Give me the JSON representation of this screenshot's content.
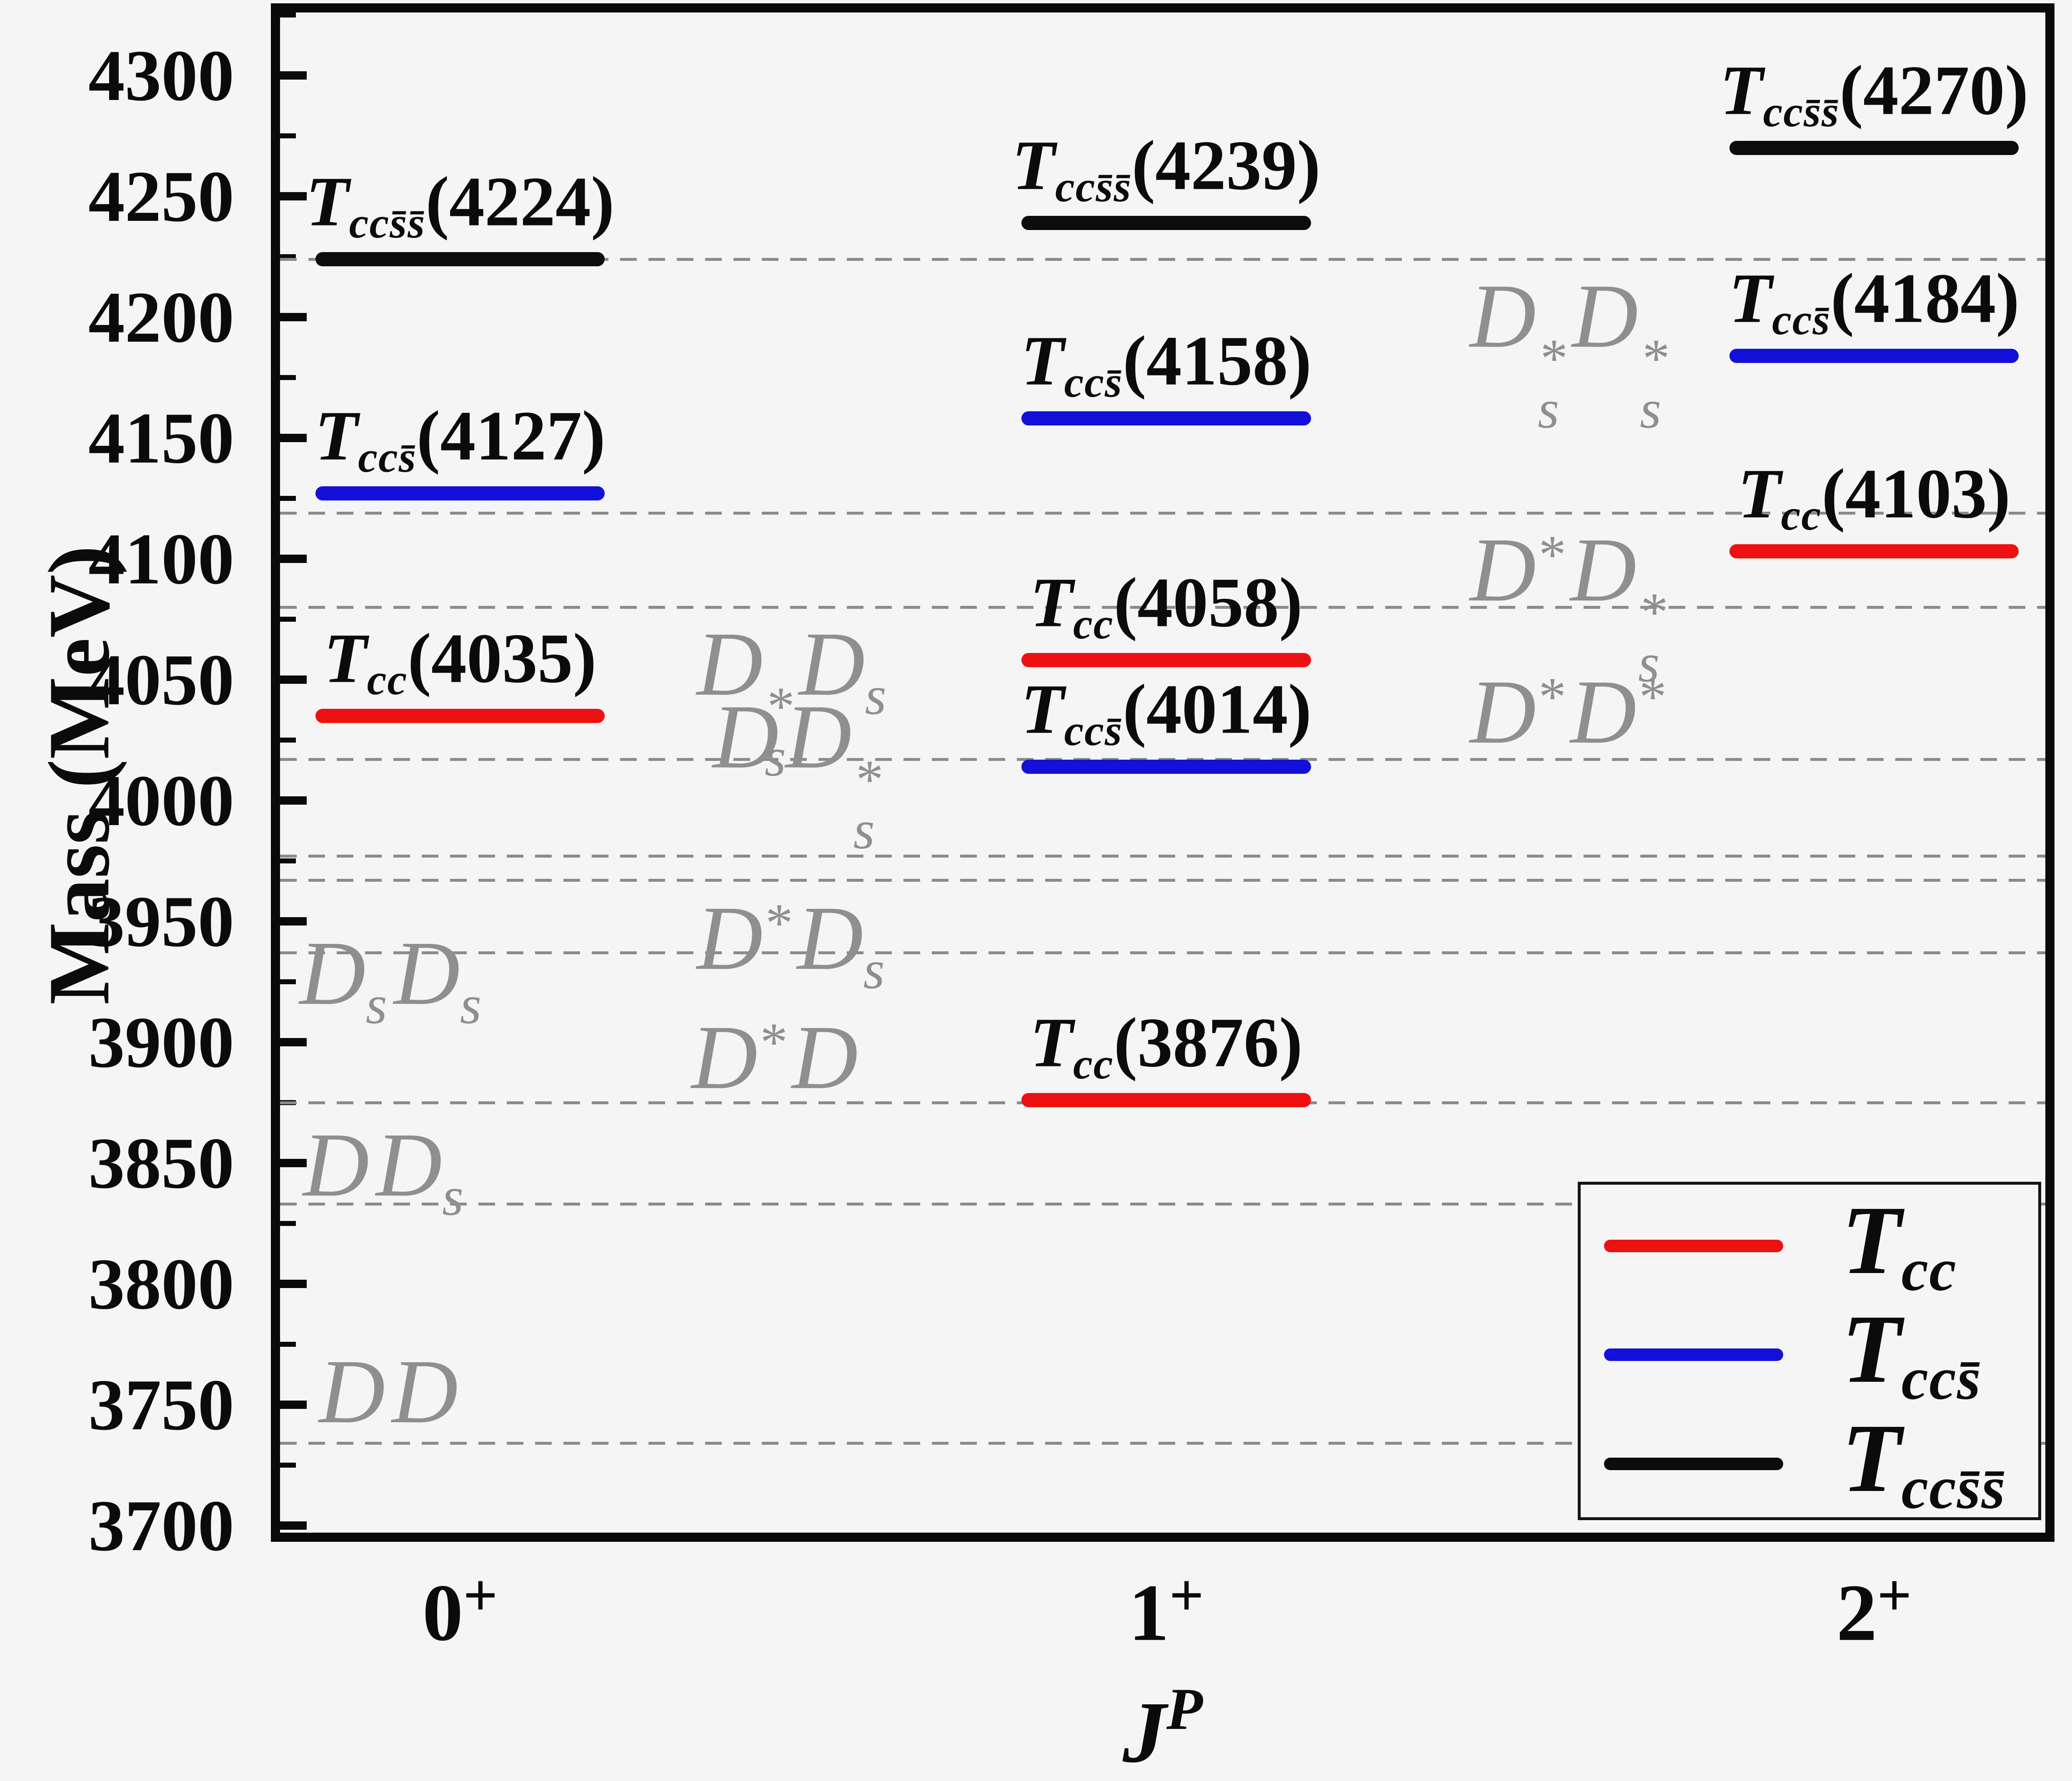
{
  "colors": {
    "background": "#f5f5f5",
    "axis": "#0a0a0a",
    "red": "#ee1111",
    "blue": "#1310d9",
    "black": "#0c0c0c",
    "threshold_line": "#8b8b8b",
    "threshold_text": "#8f8f8f"
  },
  "axes": {
    "y": {
      "title": "Mass (MeV)",
      "view_min": 3697,
      "view_max": 4326,
      "label_min": 3700,
      "label_max": 4300,
      "major_step": 50,
      "minor_step": 25
    },
    "x": {
      "title": {
        "base": "J",
        "sup": "P"
      },
      "categories": [
        {
          "base": "0",
          "sup": "+",
          "frac": 0.102
        },
        {
          "base": "1",
          "sup": "+",
          "frac": 0.502
        },
        {
          "base": "2",
          "sup": "+",
          "frac": 0.903
        }
      ]
    }
  },
  "chart_data": {
    "type": "level-diagram (horizontal mass levels per J^P category)",
    "title": "",
    "xlabel": "J^P",
    "ylabel": "Mass (MeV)",
    "ylim": [
      3697,
      4326
    ],
    "categories": [
      "0+",
      "1+",
      "2+"
    ],
    "grid": "off",
    "legend_position": "lower right",
    "series": [
      {
        "name": "Tcc",
        "sub": "cc",
        "color_key": "red",
        "levels": [
          {
            "jp": "0+",
            "mass": 4035
          },
          {
            "jp": "1+",
            "mass": 3876
          },
          {
            "jp": "1+",
            "mass": 4058
          },
          {
            "jp": "2+",
            "mass": 4103
          }
        ]
      },
      {
        "name": "Tccs̄",
        "sub": "ccs̄",
        "color_key": "blue",
        "levels": [
          {
            "jp": "0+",
            "mass": 4127
          },
          {
            "jp": "1+",
            "mass": 4014
          },
          {
            "jp": "1+",
            "mass": 4158
          },
          {
            "jp": "2+",
            "mass": 4184
          }
        ]
      },
      {
        "name": "Tccs̄s̄",
        "sub": "ccs̄s̄",
        "color_key": "black",
        "levels": [
          {
            "jp": "0+",
            "mass": 4224
          },
          {
            "jp": "1+",
            "mass": 4239
          },
          {
            "jp": "2+",
            "mass": 4270
          }
        ]
      }
    ],
    "thresholds": [
      {
        "name": "DD",
        "mass": 3734,
        "label_x": 0.022,
        "label_side": "above",
        "label_dy": 0,
        "tokens": [
          {
            "b": "D"
          },
          {
            "b": "D"
          }
        ]
      },
      {
        "name": "DDs",
        "mass": 3833,
        "label_x": 0.013,
        "label_side": "above",
        "label_dy": 30,
        "tokens": [
          {
            "b": "D"
          },
          {
            "b": "D",
            "sub": "s"
          }
        ]
      },
      {
        "name": "D*D",
        "mass": 3875,
        "label_x": 0.233,
        "label_side": "above",
        "label_dy": 15,
        "tokens": [
          {
            "b": "D",
            "sup": "*"
          },
          {
            "b": "D"
          }
        ]
      },
      {
        "name": "DsDs",
        "mass": 3937,
        "label_x": 0.011,
        "label_side": "below",
        "label_dy": -75,
        "tokens": [
          {
            "b": "D",
            "sub": "s"
          },
          {
            "b": "D",
            "sub": "s"
          }
        ]
      },
      {
        "name": "DD*s",
        "mass": 3977,
        "label_x": 0.245,
        "label_side": "above",
        "label_dy": 12,
        "tokens": [
          {
            "b": "D"
          },
          {
            "b": "D",
            "sup": "*",
            "sub": "s"
          }
        ]
      },
      {
        "name": "D*Ds",
        "mass": 3967,
        "label_x": 0.236,
        "label_side": "below",
        "label_dy": 15,
        "tokens": [
          {
            "b": "D",
            "sup": "*"
          },
          {
            "b": "D",
            "sub": "s"
          }
        ]
      },
      {
        "name": "D*D*",
        "mass": 4017,
        "label_x": 0.674,
        "label_side": "above",
        "label_dy": 10,
        "tokens": [
          {
            "b": "D",
            "sup": "*"
          },
          {
            "b": "D",
            "sup": "*"
          }
        ]
      },
      {
        "name": "D*sDs",
        "mass": 4080,
        "label_x": 0.236,
        "label_side": "below",
        "label_dy": 12,
        "tokens": [
          {
            "b": "D",
            "sup": "*",
            "sub": "s"
          },
          {
            "b": "D",
            "sub": "s"
          }
        ]
      },
      {
        "name": "D*D*s",
        "mass": 4119,
        "label_x": 0.674,
        "label_side": "below",
        "label_dy": 12,
        "tokens": [
          {
            "b": "D",
            "sup": "*"
          },
          {
            "b": "D",
            "sup": "*",
            "sub": "s"
          }
        ]
      },
      {
        "name": "D*sD*s",
        "mass": 4224,
        "label_x": 0.674,
        "label_side": "below",
        "label_dy": 12,
        "tokens": [
          {
            "b": "D",
            "sup": "*",
            "sub": "s"
          },
          {
            "b": "D",
            "sup": "*",
            "sub": "s"
          }
        ]
      }
    ],
    "level_label_values": [
      "4035",
      "3876",
      "4058",
      "4103",
      "4127",
      "4014",
      "4158",
      "4184",
      "4224",
      "4239",
      "4270"
    ]
  },
  "legend": {
    "entries": [
      {
        "base": "T",
        "sub": "cc",
        "color_key": "red"
      },
      {
        "base": "T",
        "sub": "ccs̄",
        "color_key": "blue"
      },
      {
        "base": "T",
        "sub": "ccs̄s̄",
        "color_key": "black"
      }
    ]
  }
}
